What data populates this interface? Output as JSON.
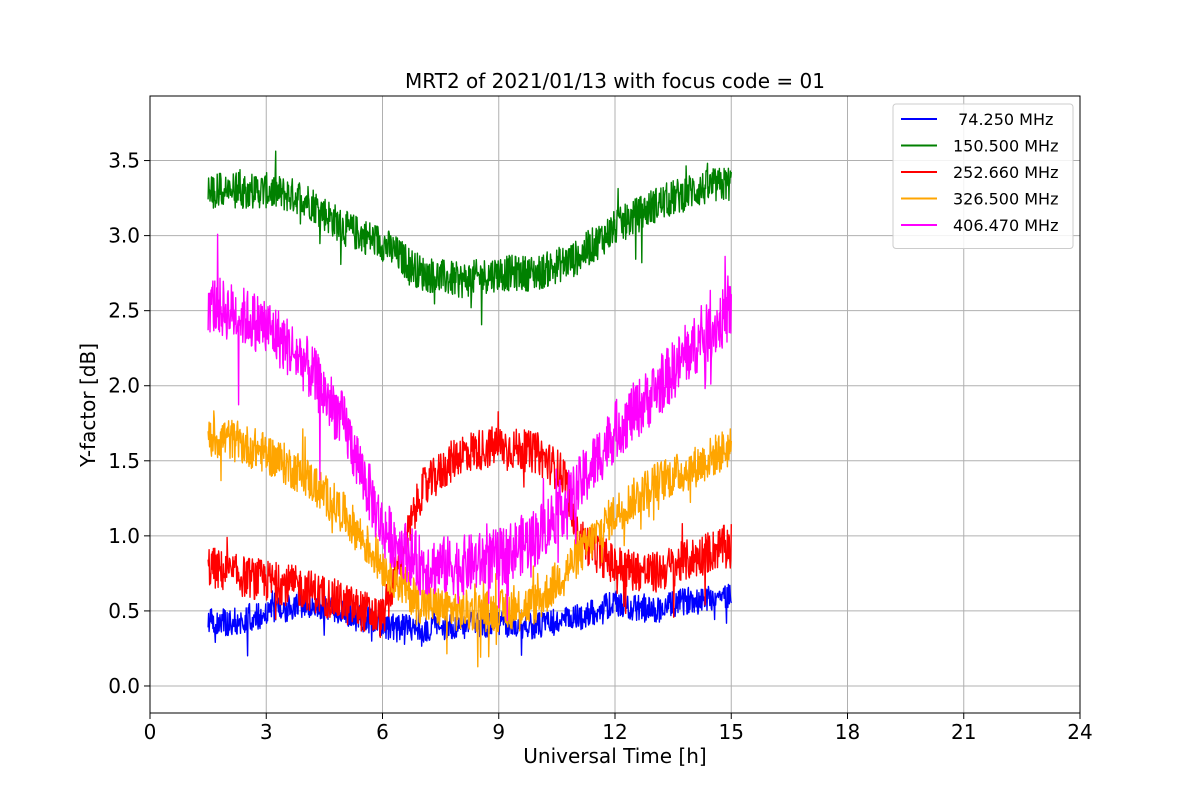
{
  "chart_data": {
    "type": "line",
    "title": "MRT2 of 2021/01/13 with focus code = 01",
    "xlabel": "Universal Time [h]",
    "ylabel": "Y-factor [dB]",
    "xlim": [
      0,
      24
    ],
    "ylim": [
      -0.18,
      3.93
    ],
    "xticks": [
      0,
      3,
      6,
      9,
      12,
      15,
      18,
      21,
      24
    ],
    "xtick_labels": [
      "0",
      "3",
      "6",
      "9",
      "12",
      "15",
      "18",
      "21",
      "24"
    ],
    "yticks": [
      0.0,
      0.5,
      1.0,
      1.5,
      2.0,
      2.5,
      3.0,
      3.5
    ],
    "ytick_labels": [
      "0.0",
      "0.5",
      "1.0",
      "1.5",
      "2.0",
      "2.5",
      "3.0",
      "3.5"
    ],
    "grid": true,
    "legend_position": "top-right",
    "series": [
      {
        "name": " 74.250 MHz",
        "color": "#0000ff",
        "noise": 0.09,
        "x": [
          1.5,
          2,
          3,
          4,
          5,
          6,
          7,
          8,
          9,
          10,
          11,
          12,
          13,
          14,
          15
        ],
        "y": [
          0.45,
          0.42,
          0.48,
          0.55,
          0.5,
          0.4,
          0.38,
          0.4,
          0.42,
          0.4,
          0.45,
          0.55,
          0.5,
          0.58,
          0.6
        ]
      },
      {
        "name": "150.500 MHz",
        "color": "#008000",
        "noise": 0.12,
        "x": [
          1.5,
          2,
          3,
          4,
          5,
          6,
          7,
          8,
          9,
          10,
          11,
          12,
          13,
          14,
          15
        ],
        "y": [
          3.3,
          3.3,
          3.3,
          3.25,
          3.05,
          2.95,
          2.75,
          2.7,
          2.75,
          2.75,
          2.85,
          3.05,
          3.2,
          3.3,
          3.35
        ]
      },
      {
        "name": "252.660 MHz",
        "color": "#ff0000",
        "noise": 0.14,
        "x": [
          1.5,
          2,
          3,
          4,
          5,
          6,
          7,
          8,
          9,
          10,
          10.7,
          11,
          12,
          13,
          14,
          15
        ],
        "y": [
          0.8,
          0.75,
          0.7,
          0.65,
          0.55,
          0.45,
          1.3,
          1.55,
          1.6,
          1.55,
          1.4,
          1.0,
          0.8,
          0.75,
          0.85,
          0.95
        ]
      },
      {
        "name": "326.500 MHz",
        "color": "#ffa500",
        "noise": 0.14,
        "x": [
          1.5,
          2,
          3,
          4,
          5,
          6,
          7,
          8,
          9,
          10,
          11,
          12,
          13,
          14,
          15
        ],
        "y": [
          1.65,
          1.65,
          1.55,
          1.4,
          1.15,
          0.8,
          0.55,
          0.5,
          0.5,
          0.55,
          0.85,
          1.15,
          1.35,
          1.45,
          1.6
        ]
      },
      {
        "name": "406.470 MHz",
        "color": "#ff00ff",
        "noise": 0.2,
        "x": [
          1.5,
          2,
          3,
          4,
          5,
          6,
          7,
          8,
          9,
          10,
          11,
          12,
          13,
          14,
          15
        ],
        "y": [
          2.55,
          2.5,
          2.4,
          2.15,
          1.75,
          1.05,
          0.8,
          0.8,
          0.85,
          1.0,
          1.3,
          1.7,
          1.95,
          2.25,
          2.5
        ]
      }
    ]
  }
}
